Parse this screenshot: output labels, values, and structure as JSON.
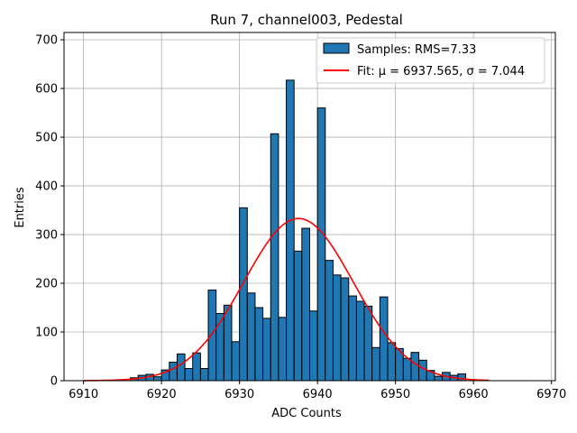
{
  "chart_data": {
    "type": "bar",
    "title": "Run 7, channel003, Pedestal",
    "xlabel": "ADC Counts",
    "ylabel": "Entries",
    "xlim": [
      6907.5,
      6970.5
    ],
    "ylim": [
      0,
      715
    ],
    "xticks": [
      6910,
      6920,
      6930,
      6940,
      6950,
      6960,
      6970
    ],
    "yticks": [
      0,
      100,
      200,
      300,
      400,
      500,
      600,
      700
    ],
    "grid": true,
    "legend_position": "top-right",
    "bin_width": 1,
    "histogram": {
      "name": "Samples: RMS=7.33",
      "color": "#1f77b4",
      "edge_color": "#000000",
      "bin_left_edges": [
        6916,
        6917,
        6918,
        6919,
        6920,
        6921,
        6922,
        6923,
        6924,
        6925,
        6926,
        6927,
        6928,
        6929,
        6930,
        6931,
        6932,
        6933,
        6934,
        6935,
        6936,
        6937,
        6938,
        6939,
        6940,
        6941,
        6942,
        6943,
        6944,
        6945,
        6946,
        6947,
        6948,
        6949,
        6950,
        6951,
        6952,
        6953,
        6954,
        6955,
        6956,
        6957,
        6958
      ],
      "counts": [
        6,
        11,
        13,
        8,
        22,
        38,
        55,
        25,
        57,
        25,
        186,
        138,
        155,
        80,
        355,
        180,
        150,
        128,
        507,
        130,
        617,
        266,
        313,
        143,
        560,
        247,
        217,
        211,
        174,
        163,
        153,
        68,
        172,
        78,
        66,
        46,
        58,
        42,
        21,
        9,
        17,
        11,
        14
      ]
    },
    "fit": {
      "name": "Fit: μ = 6937.565, σ = 7.044",
      "color": "#ff0000",
      "mu": 6937.565,
      "sigma": 7.044,
      "amplitude": 333,
      "x_range": [
        6910,
        6962
      ]
    }
  }
}
